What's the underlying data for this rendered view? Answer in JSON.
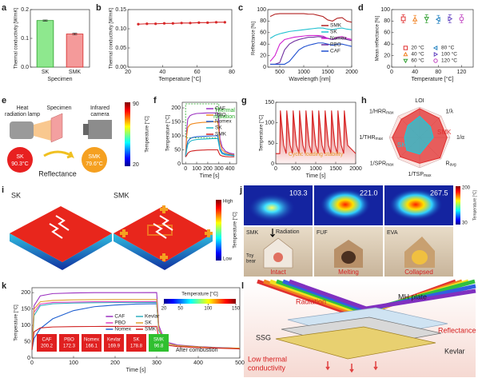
{
  "panel_labels": [
    "a",
    "b",
    "c",
    "d",
    "e",
    "f",
    "g",
    "h",
    "i",
    "j",
    "k",
    "l"
  ],
  "chart_data": [
    {
      "type": "bar",
      "ylabel": "Thermal conductivity [W/mK]",
      "xlabel": "Specimen",
      "categories": [
        "SK",
        "SMK"
      ],
      "values": [
        0.162,
        0.115
      ],
      "errors": [
        0.002,
        0.003
      ],
      "colors": [
        "#8ee88e",
        "#f49a9a"
      ],
      "edge_colors": [
        "#2ca02c",
        "#d62728"
      ],
      "ylim": [
        0,
        0.2
      ],
      "yticks": [
        {
          "value": 0,
          "label": "0.0"
        },
        0.1,
        0.2
      ]
    },
    {
      "type": "line",
      "ylabel": "Thermal conductivity [W/mK]",
      "xlabel": "Temperature [°C]",
      "xlim": [
        20,
        80
      ],
      "xticks": [
        20,
        40,
        60,
        80
      ],
      "ylim": [
        0,
        0.15
      ],
      "yticks": [
        {
          "value": 0,
          "label": "0.00"
        },
        0.05,
        {
          "value": 0.1,
          "label": "0.10"
        },
        0.15
      ],
      "markers": true,
      "series": [
        {
          "color": "#d62728",
          "x": [
            26,
            31,
            36,
            41,
            46,
            51,
            56,
            61,
            66,
            71,
            76
          ],
          "values": [
            0.112,
            0.113,
            0.113,
            0.114,
            0.114,
            0.115,
            0.115,
            0.116,
            0.116,
            0.117,
            0.117
          ]
        }
      ]
    },
    {
      "type": "line",
      "ylabel": "Reflectance [%]",
      "xlabel": "Wavelength [nm]",
      "xlim": [
        250,
        2000
      ],
      "xticks": [
        500,
        1000,
        1500,
        2000
      ],
      "ylim": [
        0,
        100
      ],
      "yticks": [
        0,
        20,
        40,
        60,
        80,
        100
      ],
      "legend": "center right",
      "x": [
        300,
        400,
        500,
        600,
        700,
        800,
        900,
        1000,
        1100,
        1200,
        1300,
        1400,
        1500,
        1600,
        1700,
        1800,
        1900,
        2000
      ],
      "series": [
        {
          "name": "SMK",
          "color": "#b22222",
          "values": [
            88,
            92,
            93,
            93,
            93,
            93,
            93,
            93,
            92,
            92,
            90,
            88,
            82,
            80,
            85,
            86,
            80,
            78
          ]
        },
        {
          "name": "SK",
          "color": "#20c0d0",
          "values": [
            50,
            55,
            58,
            60,
            62,
            63,
            64,
            65,
            66,
            67,
            68,
            68,
            66,
            65,
            67,
            68,
            66,
            65
          ]
        },
        {
          "name": "Nomex",
          "color": "#d020d0",
          "values": [
            10,
            20,
            40,
            48,
            50,
            52,
            53,
            54,
            55,
            55,
            55,
            54,
            50,
            48,
            52,
            53,
            50,
            48
          ]
        },
        {
          "name": "PBO",
          "color": "#7030a0",
          "values": [
            5,
            5,
            8,
            30,
            40,
            45,
            48,
            50,
            52,
            52,
            53,
            52,
            50,
            48,
            50,
            50,
            48,
            46
          ]
        },
        {
          "name": "CAF",
          "color": "#2050d0",
          "values": [
            5,
            5,
            5,
            5,
            10,
            20,
            30,
            35,
            38,
            40,
            42,
            42,
            40,
            38,
            40,
            40,
            38,
            36
          ]
        }
      ]
    },
    {
      "type": "scatter",
      "ylabel": "Mean reflectance [%]",
      "xlabel": "Temperature [°C]",
      "xlim": [
        0,
        140
      ],
      "xticks": [
        0,
        40,
        80,
        120
      ],
      "ylim": [
        0,
        100
      ],
      "yticks": [
        0,
        20,
        40,
        60,
        80,
        100
      ],
      "legend": "lower center",
      "legend_columns": 2,
      "series": [
        {
          "name": "20 °C",
          "color": "#e03030",
          "marker": "square",
          "x": [
            20
          ],
          "values": [
            84
          ],
          "errors": [
            7
          ]
        },
        {
          "name": "40 °C",
          "color": "#f08020",
          "marker": "triangle-up",
          "x": [
            40
          ],
          "values": [
            83
          ],
          "errors": [
            7
          ]
        },
        {
          "name": "60 °C",
          "color": "#30a030",
          "marker": "triangle-down",
          "x": [
            60
          ],
          "values": [
            84
          ],
          "errors": [
            7
          ]
        },
        {
          "name": "80 °C",
          "color": "#2080c0",
          "marker": "triangle-left",
          "x": [
            80
          ],
          "values": [
            83
          ],
          "errors": [
            7
          ]
        },
        {
          "name": "100 °C",
          "color": "#6040c0",
          "marker": "triangle-right",
          "x": [
            100
          ],
          "values": [
            84
          ],
          "errors": [
            7
          ]
        },
        {
          "name": "120 °C",
          "color": "#c040c0",
          "marker": "circle",
          "x": [
            120
          ],
          "values": [
            84
          ],
          "errors": [
            7
          ]
        }
      ]
    },
    {
      "type": "line",
      "ylabel": "Temperature [°C]",
      "xlabel": "Time [s]",
      "xlim": [
        -30,
        460
      ],
      "xticks": [
        0,
        100,
        200,
        300,
        400
      ],
      "ylim": [
        0,
        220
      ],
      "yticks": [
        0,
        50,
        100,
        150,
        200
      ],
      "legend": "upper right",
      "highlight": [
        0,
        300
      ],
      "annotation": [
        "Thermal",
        "radiation"
      ],
      "annotation_color": "#22aa22",
      "x": [
        0,
        10,
        20,
        40,
        60,
        100,
        150,
        200,
        250,
        290,
        300,
        310,
        330,
        360,
        400,
        440
      ],
      "series": [
        {
          "name": "CAF",
          "color": "#9b30c0",
          "values": [
            25,
            120,
            160,
            172,
            176,
            180,
            181,
            182,
            182,
            182,
            150,
            90,
            60,
            45,
            38,
            35
          ]
        },
        {
          "name": "PBO",
          "color": "#f08a20",
          "values": [
            25,
            100,
            130,
            140,
            143,
            146,
            148,
            149,
            150,
            150,
            120,
            75,
            50,
            40,
            35,
            32
          ]
        },
        {
          "name": "Nomex",
          "color": "#2060d0",
          "values": [
            25,
            60,
            80,
            90,
            94,
            97,
            98,
            99,
            100,
            100,
            80,
            55,
            40,
            35,
            32,
            30
          ]
        },
        {
          "name": "SK",
          "color": "#20b8c8",
          "values": [
            25,
            50,
            70,
            80,
            84,
            87,
            88,
            89,
            90,
            90,
            70,
            48,
            36,
            32,
            30,
            28
          ]
        },
        {
          "name": "SMK",
          "color": "#d02020",
          "values": [
            25,
            30,
            38,
            44,
            46,
            48,
            49,
            50,
            50,
            50,
            40,
            32,
            28,
            26,
            25,
            25
          ]
        }
      ]
    },
    {
      "type": "line",
      "ylabel": "Temperature [°C]",
      "xlabel": "Time [s]",
      "xlim": [
        0,
        2000
      ],
      "xticks": [
        0,
        500,
        1000,
        1500,
        2000
      ],
      "ylim": [
        0,
        150
      ],
      "yticks": [
        0,
        50,
        100,
        150
      ],
      "fill": true,
      "annotation": [
        "Cyclic loading stability"
      ],
      "annotation_color": "#e89a30",
      "x": [
        0,
        100,
        115,
        200,
        260,
        275,
        360,
        420,
        435,
        520,
        580,
        595,
        680,
        740,
        755,
        840,
        900,
        915,
        1000,
        1060,
        1075,
        1160,
        1220,
        1235,
        1320,
        1380,
        1395,
        1480,
        1540,
        1555,
        1640,
        1700,
        1715,
        1800,
        2000
      ],
      "series": [
        {
          "color": "#d62020",
          "values": [
            25,
            25,
            130,
            45,
            25,
            130,
            45,
            25,
            130,
            45,
            25,
            130,
            45,
            25,
            130,
            45,
            25,
            130,
            45,
            25,
            130,
            45,
            25,
            130,
            45,
            25,
            130,
            45,
            25,
            130,
            45,
            25,
            130,
            45,
            25
          ]
        }
      ]
    },
    {
      "type": "radar",
      "axes": [
        {
          "text": "LOI"
        },
        {
          "text": "1/λ"
        },
        {
          "text": "1/α"
        },
        {
          "text": "R",
          "sub": "avg"
        },
        {
          "text": "1/TSP",
          "sub": "max"
        },
        {
          "text": "1/SPR",
          "sub": "max"
        },
        {
          "text": "1/THR",
          "sub": "max"
        },
        {
          "text": "1/HRR",
          "sub": "max"
        }
      ],
      "rlim": [
        0,
        1
      ],
      "series": [
        {
          "name": "SMK",
          "color": "#e03030",
          "values": [
            0.95,
            0.9,
            0.9,
            0.95,
            0.85,
            0.9,
            0.9,
            0.85
          ]
        },
        {
          "name": "SK",
          "color": "#20c8d8",
          "values": [
            0.7,
            0.5,
            0.45,
            0.35,
            0.55,
            0.6,
            0.5,
            0.55
          ]
        }
      ]
    },
    {
      "type": "line",
      "ylabel": "Temperature [°C]",
      "xlabel": "Time [s]",
      "xlim": [
        0,
        500
      ],
      "xticks": [
        0,
        100,
        200,
        300,
        400,
        500
      ],
      "ylim": [
        0,
        215
      ],
      "yticks": [
        0,
        50,
        100,
        150,
        200
      ],
      "legend": "center",
      "legend_columns": 2,
      "x": [
        0,
        5,
        20,
        50,
        100,
        150,
        200,
        250,
        300,
        305,
        320,
        350,
        400,
        450,
        500
      ],
      "series": [
        {
          "name": "CAF",
          "color": "#9b30c0",
          "values": [
            25,
            160,
            190,
            197,
            199,
            200,
            200,
            200,
            200.2,
            100,
            50,
            40,
            35,
            32,
            30
          ]
        },
        {
          "name": "PBO",
          "color": "#e040c0",
          "values": [
            25,
            140,
            165,
            170,
            171,
            172,
            172,
            172,
            172.3,
            90,
            45,
            38,
            34,
            31,
            30
          ]
        },
        {
          "name": "Nomex",
          "color": "#2060d0",
          "values": [
            25,
            60,
            90,
            120,
            145,
            157,
            162,
            165,
            166.1,
            85,
            45,
            38,
            34,
            31,
            30
          ]
        },
        {
          "name": "Kevlar",
          "color": "#30b0c0",
          "values": [
            25,
            130,
            160,
            166,
            168,
            169,
            169.5,
            169.8,
            169.9,
            88,
            45,
            38,
            34,
            31,
            30
          ]
        },
        {
          "name": "SK",
          "color": "#e0a030",
          "values": [
            25,
            150,
            172,
            176,
            178,
            178.5,
            178.7,
            178.8,
            178.8,
            90,
            45,
            38,
            34,
            31,
            30
          ]
        },
        {
          "name": "SMK",
          "color": "#d02020",
          "values": [
            25,
            80,
            92,
            95,
            96,
            96.5,
            96.7,
            96.8,
            96.8,
            60,
            40,
            35,
            32,
            30,
            28
          ]
        }
      ],
      "colorbar": {
        "label": "Temperature [°C]",
        "lim": [
          20,
          150
        ],
        "ticks": [
          20,
          50,
          100,
          150
        ]
      },
      "box_values": [
        200.2,
        172.3,
        166.1,
        169.9,
        178.8,
        96.8
      ],
      "box_colors": [
        "#e02020",
        "#e02020",
        "#e02020",
        "#e02020",
        "#e02020",
        "#30c030"
      ],
      "note": "After combustion"
    }
  ],
  "panel_e": {
    "lamp": [
      "Heat",
      "radiation lamp"
    ],
    "specimen": "Specimen",
    "camera": [
      "Infrared",
      "camera"
    ],
    "colorbar": {
      "label": "Temperature [°C]",
      "max": 90,
      "min": 20
    },
    "sk": {
      "name": "SK",
      "temp": "90.3°C"
    },
    "smk": {
      "name": "SMK",
      "temp": "79.6°C"
    },
    "caption": "Reflectance"
  },
  "panel_i": {
    "left": "SK",
    "right": "SMK",
    "colorbar": {
      "label": "Temperature [°C]",
      "high": "High",
      "low": "Low"
    }
  },
  "panel_j": {
    "temps": [
      "103.3",
      "221.0",
      "267.5"
    ],
    "colorbar": {
      "label": "Temperature [°C]",
      "max": 200,
      "min": 30
    },
    "labels": [
      "SMK",
      "FUF",
      "EVA"
    ],
    "radiation": "Radiation",
    "toy": [
      "Toy",
      "bear"
    ],
    "states": [
      "Intact",
      "Melting",
      "Collapsed"
    ]
  },
  "panel_l": {
    "radiation": "Radiation",
    "plate": "MH plate",
    "reflectance": "Reflectance",
    "ssg": "SSG",
    "kevlar": "Kevlar",
    "low": [
      "Low thermal",
      "conductivity"
    ]
  }
}
